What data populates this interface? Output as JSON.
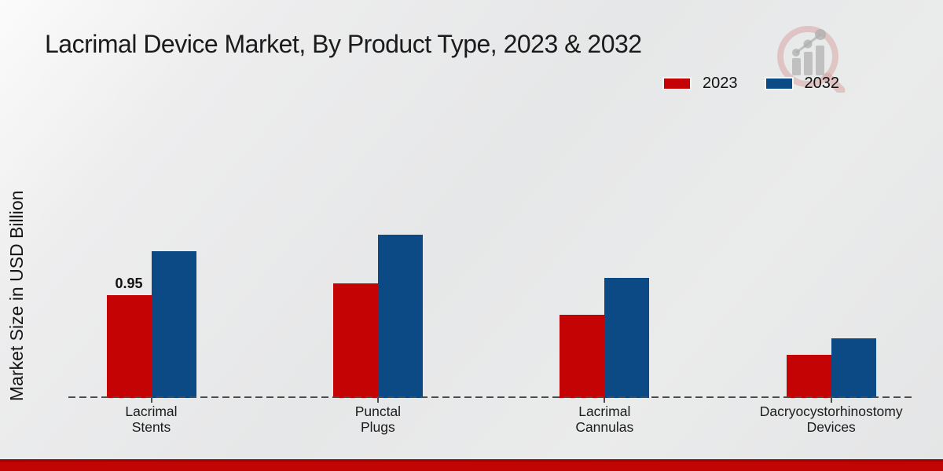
{
  "page": {
    "background_light": "#fbfbfb",
    "background_gray": "#e6e7e8",
    "footer_stripe_dark": "#990404",
    "footer_stripe_red": "#c10505"
  },
  "chart_data": {
    "type": "bar",
    "title": "Lacrimal Device Market, By Product Type, 2023 & 2032",
    "xlabel": "",
    "ylabel": "Market Size in USD Billion",
    "categories": [
      "Lacrimal Stents",
      "Punctal Plugs",
      "Lacrimal Cannulas",
      "Dacryocystorhinostomy Devices"
    ],
    "series": [
      {
        "name": "2023",
        "color": "#c40404",
        "values": [
          0.95,
          1.06,
          0.77,
          0.4
        ]
      },
      {
        "name": "2032",
        "color": "#0b4a85",
        "values": [
          1.36,
          1.51,
          1.11,
          0.55
        ]
      }
    ],
    "annotations": [
      {
        "series_index": 0,
        "category_index": 0,
        "text": "0.95"
      }
    ],
    "ylim": [
      0,
      1.6
    ],
    "grid": false,
    "legend_position": "top-right",
    "axis_line_color": "#4d4d4d",
    "baseline_style": "dashed",
    "y_axis_ticks_visible": false
  },
  "watermark": {
    "description": "magnifying-glass bar-chart logo",
    "ring_color": "#d9a6a6",
    "bars_color": "#aeaeae"
  }
}
